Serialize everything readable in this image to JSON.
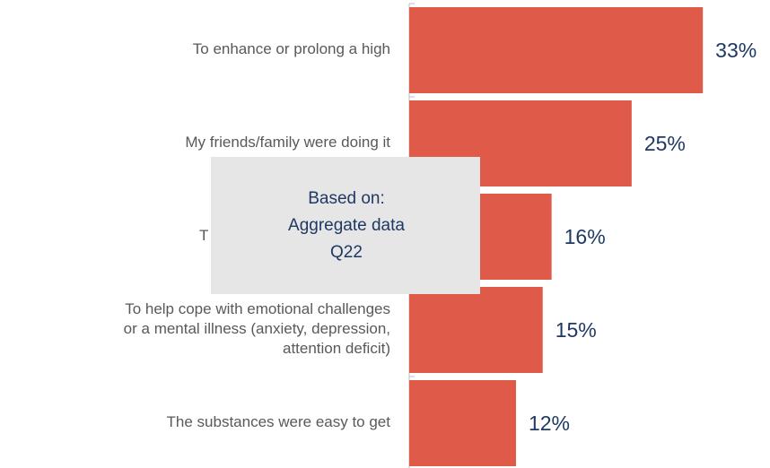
{
  "chart_data": {
    "type": "barh",
    "categories": [
      "To enhance or prolong a high",
      "My friends/family were doing it",
      "T",
      "To help cope with  emotional challenges\nor a mental illness (anxiety, depression,\nattention deficit)",
      "The substances were easy to get"
    ],
    "values": [
      33,
      25,
      16,
      15,
      12
    ],
    "value_labels": [
      "33%",
      "25%",
      "16%",
      "15%",
      "12%"
    ],
    "color": "#e05a4a",
    "xlim": [
      0,
      35
    ],
    "overlay": [
      "Based on:",
      "Aggregate data",
      "Q22"
    ]
  }
}
